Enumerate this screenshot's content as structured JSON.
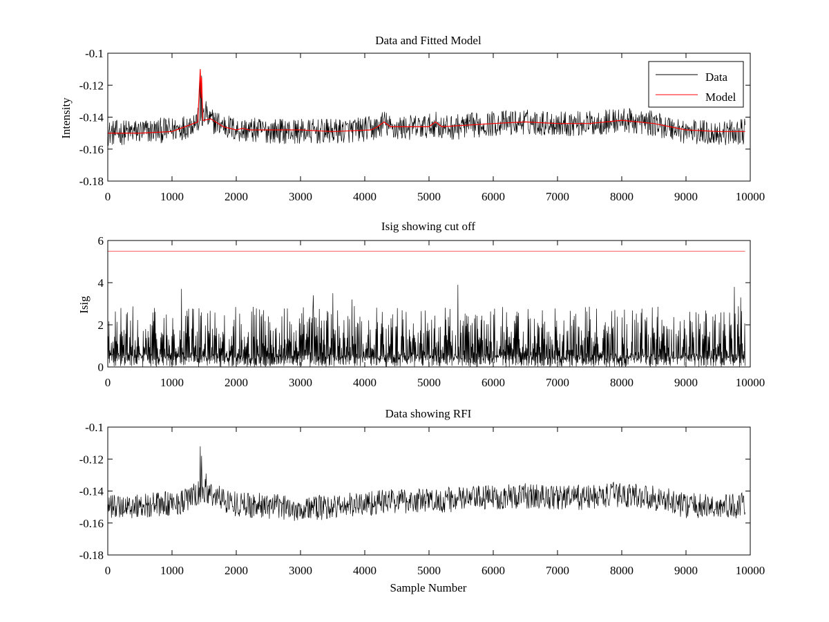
{
  "figure": {
    "background": "#ffffff"
  },
  "chart_data": [
    {
      "type": "line",
      "title": "Data and Fitted Model",
      "xlabel": "",
      "ylabel": "Intensity",
      "xlim": [
        0,
        10000
      ],
      "ylim": [
        -0.18,
        -0.1
      ],
      "xticks": [
        0,
        1000,
        2000,
        3000,
        4000,
        5000,
        6000,
        7000,
        8000,
        9000,
        10000
      ],
      "xtick_labels": [
        "0",
        "1000",
        "2000",
        "3000",
        "4000",
        "5000",
        "6000",
        "7000",
        "8000",
        "9000",
        "10000"
      ],
      "yticks": [
        -0.18,
        -0.16,
        -0.14,
        -0.12,
        -0.1
      ],
      "ytick_labels": [
        "-0.18",
        "-0.16",
        "-0.14",
        "-0.12",
        "-0.1"
      ],
      "grid": false,
      "legend": {
        "placement": "top-right",
        "entries": [
          "Data",
          "Model"
        ]
      },
      "series": [
        {
          "name": "Data",
          "color": "#000000",
          "x_range": [
            0,
            9920
          ],
          "noise_amplitude": 0.008,
          "baseline_x": [
            0,
            1000,
            1200,
            1400,
            1500,
            1600,
            2000,
            3000,
            3500,
            4200,
            4300,
            4400,
            5000,
            5100,
            5200,
            6000,
            6500,
            7000,
            7500,
            8000,
            8500,
            9000,
            9500,
            9920
          ],
          "baseline_y": [
            -0.15,
            -0.148,
            -0.146,
            -0.142,
            -0.14,
            -0.142,
            -0.148,
            -0.149,
            -0.149,
            -0.147,
            -0.143,
            -0.147,
            -0.146,
            -0.144,
            -0.147,
            -0.144,
            -0.143,
            -0.144,
            -0.144,
            -0.142,
            -0.144,
            -0.149,
            -0.15,
            -0.149
          ],
          "spikes": [
            {
              "x": 1440,
              "y": -0.11
            },
            {
              "x": 1460,
              "y": -0.114
            },
            {
              "x": 1530,
              "y": -0.13
            }
          ]
        },
        {
          "name": "Model",
          "color": "#ff0000",
          "x": [
            0,
            500,
            1000,
            1200,
            1400,
            1440,
            1450,
            1460,
            1480,
            1500,
            1600,
            1800,
            2000,
            2100,
            2200,
            3000,
            3500,
            4100,
            4200,
            4300,
            4400,
            5000,
            5100,
            5200,
            6000,
            6500,
            7000,
            7500,
            8000,
            8500,
            9000,
            9500,
            9920
          ],
          "y": [
            -0.15,
            -0.15,
            -0.149,
            -0.146,
            -0.143,
            -0.11,
            -0.128,
            -0.115,
            -0.142,
            -0.142,
            -0.141,
            -0.146,
            -0.148,
            -0.147,
            -0.148,
            -0.148,
            -0.149,
            -0.148,
            -0.146,
            -0.143,
            -0.146,
            -0.146,
            -0.143,
            -0.146,
            -0.144,
            -0.143,
            -0.144,
            -0.144,
            -0.142,
            -0.144,
            -0.148,
            -0.149,
            -0.149
          ]
        }
      ]
    },
    {
      "type": "line",
      "title": "Isig showing cut off",
      "xlabel": "",
      "ylabel": "Isig",
      "xlim": [
        0,
        10000
      ],
      "ylim": [
        0,
        6
      ],
      "xticks": [
        0,
        1000,
        2000,
        3000,
        4000,
        5000,
        6000,
        7000,
        8000,
        9000,
        10000
      ],
      "xtick_labels": [
        "0",
        "1000",
        "2000",
        "3000",
        "4000",
        "5000",
        "6000",
        "7000",
        "8000",
        "9000",
        "10000"
      ],
      "yticks": [
        0,
        2,
        4,
        6
      ],
      "ytick_labels": [
        "0",
        "2",
        "4",
        "6"
      ],
      "grid": false,
      "series": [
        {
          "color": "#000000",
          "x_range": [
            0,
            9920
          ],
          "typical_max": 2.5,
          "peaks": [
            {
              "x": 1150,
              "y": 3.7
            },
            {
              "x": 3200,
              "y": 3.4
            },
            {
              "x": 3500,
              "y": 3.5
            },
            {
              "x": 3800,
              "y": 3.2
            },
            {
              "x": 5450,
              "y": 3.9
            },
            {
              "x": 9750,
              "y": 3.8
            },
            {
              "x": 9850,
              "y": 3.3
            }
          ]
        },
        {
          "color": "#ff0000",
          "x": [
            0,
            9920
          ],
          "y": [
            5.5,
            5.5
          ]
        }
      ]
    },
    {
      "type": "line",
      "title": "Data showing RFI",
      "xlabel": "Sample Number",
      "ylabel": "",
      "xlim": [
        0,
        10000
      ],
      "ylim": [
        -0.18,
        -0.1
      ],
      "xticks": [
        0,
        1000,
        2000,
        3000,
        4000,
        5000,
        6000,
        7000,
        8000,
        9000,
        10000
      ],
      "xtick_labels": [
        "0",
        "1000",
        "2000",
        "3000",
        "4000",
        "5000",
        "6000",
        "7000",
        "8000",
        "9000",
        "10000"
      ],
      "yticks": [
        -0.18,
        -0.16,
        -0.14,
        -0.12,
        -0.1
      ],
      "ytick_labels": [
        "-0.18",
        "-0.16",
        "-0.14",
        "-0.12",
        "-0.1"
      ],
      "grid": false,
      "series": [
        {
          "color": "#000000",
          "x_range": [
            0,
            9920
          ],
          "noise_amplitude": 0.008,
          "baseline_x": [
            0,
            1000,
            1200,
            1400,
            1500,
            1600,
            2000,
            3000,
            3500,
            4200,
            4500,
            5000,
            5500,
            6000,
            6500,
            7000,
            7500,
            8000,
            8500,
            9000,
            9500,
            9920
          ],
          "baseline_y": [
            -0.15,
            -0.148,
            -0.146,
            -0.142,
            -0.14,
            -0.142,
            -0.148,
            -0.151,
            -0.15,
            -0.147,
            -0.146,
            -0.146,
            -0.145,
            -0.144,
            -0.143,
            -0.144,
            -0.144,
            -0.142,
            -0.144,
            -0.149,
            -0.15,
            -0.149
          ],
          "spikes": [
            {
              "x": 1440,
              "y": -0.112
            },
            {
              "x": 1460,
              "y": -0.118
            },
            {
              "x": 1530,
              "y": -0.129
            }
          ]
        }
      ]
    }
  ]
}
